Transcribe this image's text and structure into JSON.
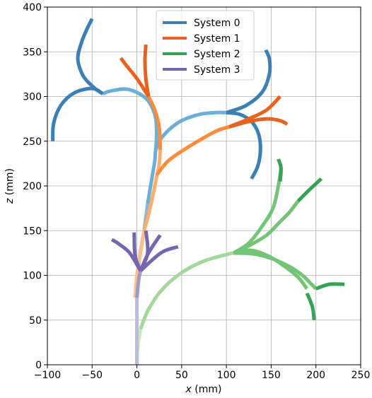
{
  "chart_data": {
    "type": "line",
    "xlabel_var": "x",
    "xlabel_unit": " (mm)",
    "ylabel_var": "z",
    "ylabel_unit": " (mm)",
    "xlim": [
      -100,
      250
    ],
    "ylim": [
      0,
      400
    ],
    "xticks": [
      -100,
      -50,
      0,
      50,
      100,
      150,
      200,
      250
    ],
    "yticks": [
      0,
      50,
      100,
      150,
      200,
      250,
      300,
      350,
      400
    ],
    "x_tick_labels": [
      "−100",
      "−50",
      "0",
      "50",
      "100",
      "150",
      "200",
      "250"
    ],
    "y_tick_labels": [
      "0",
      "50",
      "100",
      "150",
      "200",
      "250",
      "300",
      "350",
      "400"
    ],
    "grid": true,
    "legend_position": "top-center",
    "series": [
      {
        "name": "System 0",
        "color": "#3c7fb4",
        "segments": [
          {
            "shade": "#b0c4de",
            "pts": [
              [
                0,
                0
              ],
              [
                0,
                50
              ],
              [
                0,
                80
              ]
            ]
          },
          {
            "shade": "#8fb3d9",
            "pts": [
              [
                0,
                80
              ],
              [
                3,
                120
              ],
              [
                8,
                150
              ],
              [
                12,
                180
              ]
            ]
          },
          {
            "shade": "#6baed6",
            "pts": [
              [
                12,
                180
              ],
              [
                17,
                210
              ],
              [
                20,
                228
              ],
              [
                21,
                240
              ],
              [
                25,
                250
              ],
              [
                35,
                262
              ],
              [
                50,
                273
              ],
              [
                70,
                280
              ],
              [
                88,
                282
              ],
              [
                100,
                282
              ]
            ]
          },
          {
            "shade": "#6baed6",
            "pts": [
              [
                21,
                240
              ],
              [
                22,
                260
              ],
              [
                20,
                280
              ],
              [
                10,
                298
              ],
              [
                -10,
                308
              ],
              [
                -30,
                306
              ],
              [
                -38,
                303
              ]
            ]
          },
          {
            "shade": "#3c7fb4",
            "pts": [
              [
                -38,
                303
              ],
              [
                -50,
                309
              ],
              [
                -70,
                304
              ],
              [
                -85,
                290
              ],
              [
                -93,
                270
              ],
              [
                -94,
                250
              ]
            ]
          },
          {
            "shade": "#3c7fb4",
            "pts": [
              [
                -38,
                303
              ],
              [
                -48,
                310
              ],
              [
                -60,
                323
              ],
              [
                -66,
                342
              ],
              [
                -62,
                360
              ],
              [
                -56,
                375
              ],
              [
                -50,
                387
              ]
            ]
          },
          {
            "shade": "#3c7fb4",
            "pts": [
              [
                100,
                282
              ],
              [
                115,
                280
              ],
              [
                128,
                272
              ],
              [
                136,
                258
              ],
              [
                138,
                240
              ],
              [
                135,
                222
              ],
              [
                128,
                208
              ]
            ]
          },
          {
            "shade": "#3c7fb4",
            "pts": [
              [
                100,
                282
              ],
              [
                122,
                290
              ],
              [
                140,
                305
              ],
              [
                148,
                325
              ],
              [
                148,
                342
              ],
              [
                144,
                352
              ]
            ]
          }
        ]
      },
      {
        "name": "System 1",
        "color": "#e6621d",
        "segments": [
          {
            "shade": "#fdc08c",
            "pts": [
              [
                -2,
                75
              ],
              [
                0,
                100
              ],
              [
                4,
                125
              ],
              [
                8,
                150
              ]
            ]
          },
          {
            "shade": "#fdae6b",
            "pts": [
              [
                8,
                150
              ],
              [
                13,
                168
              ],
              [
                18,
                190
              ],
              [
                22,
                210
              ],
              [
                25,
                225
              ],
              [
                26,
                240
              ]
            ]
          },
          {
            "shade": "#fd8d3c",
            "pts": [
              [
                26,
                240
              ],
              [
                25,
                265
              ],
              [
                20,
                285
              ],
              [
                13,
                300
              ]
            ]
          },
          {
            "shade": "#fd8d3c",
            "pts": [
              [
                22,
                212
              ],
              [
                35,
                228
              ],
              [
                55,
                242
              ],
              [
                75,
                254
              ],
              [
                90,
                262
              ],
              [
                103,
                266
              ]
            ]
          },
          {
            "shade": "#e6621d",
            "pts": [
              [
                13,
                300
              ],
              [
                0,
                320
              ],
              [
                -12,
                335
              ],
              [
                -18,
                343
              ]
            ]
          },
          {
            "shade": "#e6621d",
            "pts": [
              [
                13,
                300
              ],
              [
                10,
                320
              ],
              [
                9,
                340
              ],
              [
                10,
                358
              ]
            ]
          },
          {
            "shade": "#e6621d",
            "pts": [
              [
                103,
                266
              ],
              [
                125,
                272
              ],
              [
                145,
                275
              ],
              [
                160,
                273
              ],
              [
                168,
                269
              ]
            ]
          },
          {
            "shade": "#e6621d",
            "pts": [
              [
                103,
                266
              ],
              [
                125,
                275
              ],
              [
                145,
                285
              ],
              [
                160,
                300
              ]
            ]
          }
        ]
      },
      {
        "name": "System 2",
        "color": "#36a253",
        "segments": [
          {
            "shade": "#c7e9c0",
            "pts": [
              [
                0,
                0
              ],
              [
                1,
                20
              ],
              [
                4,
                40
              ]
            ]
          },
          {
            "shade": "#a1d99b",
            "pts": [
              [
                4,
                40
              ],
              [
                13,
                62
              ],
              [
                28,
                84
              ],
              [
                50,
                103
              ],
              [
                75,
                116
              ],
              [
                103,
                124
              ],
              [
                108,
                125
              ]
            ]
          },
          {
            "shade": "#74c476",
            "pts": [
              [
                108,
                125
              ],
              [
                130,
                124
              ],
              [
                150,
                119
              ],
              [
                170,
                110
              ],
              [
                185,
                100
              ],
              [
                195,
                90
              ],
              [
                200,
                85
              ]
            ]
          },
          {
            "shade": "#74c476",
            "pts": [
              [
                108,
                125
              ],
              [
                125,
                133
              ],
              [
                145,
                145
              ],
              [
                160,
                160
              ],
              [
                170,
                170
              ],
              [
                180,
                183
              ]
            ]
          },
          {
            "shade": "#74c476",
            "pts": [
              [
                108,
                125
              ],
              [
                125,
                136
              ],
              [
                140,
                155
              ],
              [
                152,
                175
              ],
              [
                158,
                200
              ],
              [
                161,
                220
              ]
            ]
          },
          {
            "shade": "#74c476",
            "pts": [
              [
                108,
                125
              ],
              [
                128,
                128
              ],
              [
                148,
                121
              ],
              [
                165,
                110
              ],
              [
                180,
                98
              ],
              [
                190,
                85
              ]
            ]
          },
          {
            "shade": "#36a253",
            "pts": [
              [
                180,
                183
              ],
              [
                192,
                195
              ],
              [
                206,
                208
              ]
            ]
          },
          {
            "shade": "#36a253",
            "pts": [
              [
                190,
                80
              ],
              [
                196,
                65
              ],
              [
                198,
                50
              ]
            ]
          },
          {
            "shade": "#36a253",
            "pts": [
              [
                200,
                85
              ],
              [
                215,
                90
              ],
              [
                232,
                90
              ]
            ]
          },
          {
            "shade": "#36a253",
            "pts": [
              [
                160,
                205
              ],
              [
                161,
                220
              ],
              [
                158,
                230
              ]
            ]
          }
        ]
      },
      {
        "name": "System 3",
        "color": "#7666b0",
        "segments": [
          {
            "shade": "#bcbddc",
            "pts": [
              [
                0,
                0
              ],
              [
                0,
                40
              ],
              [
                0,
                75
              ]
            ]
          },
          {
            "shade": "#9e9ac8",
            "pts": [
              [
                0,
                75
              ],
              [
                2,
                95
              ],
              [
                4,
                105
              ]
            ]
          },
          {
            "shade": "#7666b0",
            "pts": [
              [
                4,
                105
              ],
              [
                -8,
                125
              ],
              [
                -20,
                135
              ],
              [
                -28,
                140
              ]
            ]
          },
          {
            "shade": "#7666b0",
            "pts": [
              [
                4,
                105
              ],
              [
                -2,
                122
              ],
              [
                -3,
                148
              ]
            ]
          },
          {
            "shade": "#7666b0",
            "pts": [
              [
                4,
                105
              ],
              [
                12,
                125
              ],
              [
                10,
                150
              ]
            ]
          },
          {
            "shade": "#7666b0",
            "pts": [
              [
                4,
                105
              ],
              [
                13,
                125
              ],
              [
                26,
                145
              ]
            ]
          },
          {
            "shade": "#7666b0",
            "pts": [
              [
                4,
                105
              ],
              [
                18,
                118
              ],
              [
                30,
                127
              ],
              [
                46,
                132
              ]
            ]
          }
        ]
      }
    ]
  }
}
